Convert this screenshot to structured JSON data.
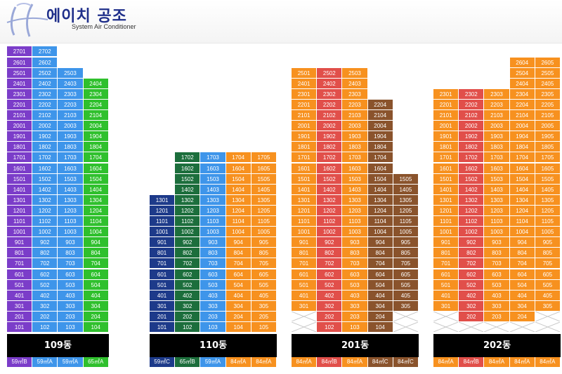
{
  "brand": {
    "name": "에이치 공조",
    "subtitle": "System Air Conditioner"
  },
  "colors": {
    "purple": "#7b3dc9",
    "blue": "#3e95ea",
    "green": "#2fc02d",
    "navy": "#1d3a8a",
    "darkgreen": "#1c6e3c",
    "orange": "#f7911f",
    "red": "#e14f4a",
    "brown": "#8a532c"
  },
  "buildings": [
    {
      "name": "109동",
      "x": 10,
      "lines": [
        {
          "key": "01",
          "color": "purple",
          "floors": [
            1,
            27
          ],
          "skip": []
        },
        {
          "key": "02",
          "color": "blue",
          "floors": [
            1,
            27
          ],
          "skip": []
        },
        {
          "key": "03",
          "color": "blue",
          "floors": [
            1,
            25
          ],
          "skip": []
        },
        {
          "key": "04",
          "color": "green",
          "floors": [
            1,
            24
          ],
          "skip": []
        }
      ],
      "units": [
        {
          "label": "59㎡B",
          "color": "purple"
        },
        {
          "label": "59㎡A",
          "color": "blue"
        },
        {
          "label": "59㎡A",
          "color": "blue"
        },
        {
          "label": "65㎡A",
          "color": "green"
        }
      ]
    },
    {
      "name": "110동",
      "x": 213,
      "lines": [
        {
          "key": "01",
          "color": "navy",
          "floors": [
            1,
            13
          ],
          "skip": []
        },
        {
          "key": "02",
          "color": "darkgreen",
          "floors": [
            1,
            17
          ],
          "skip": []
        },
        {
          "key": "03",
          "color": "blue",
          "floors": [
            1,
            17
          ],
          "skip": []
        },
        {
          "key": "04",
          "color": "orange",
          "floors": [
            1,
            17
          ],
          "skip": []
        },
        {
          "key": "05",
          "color": "orange",
          "floors": [
            1,
            17
          ],
          "skip": []
        }
      ],
      "units": [
        {
          "label": "59㎡C",
          "color": "navy"
        },
        {
          "label": "65㎡B",
          "color": "darkgreen"
        },
        {
          "label": "59㎡A",
          "color": "blue"
        },
        {
          "label": "84㎡A",
          "color": "orange"
        },
        {
          "label": "84㎡A",
          "color": "orange"
        }
      ]
    },
    {
      "name": "201동",
      "x": 415,
      "lines": [
        {
          "key": "01",
          "color": "orange",
          "floors": [
            3,
            25
          ],
          "skip": [
            1,
            2
          ]
        },
        {
          "key": "02",
          "color": "red",
          "floors": [
            1,
            25
          ],
          "skip": []
        },
        {
          "key": "03",
          "color": "orange",
          "floors": [
            1,
            25
          ],
          "skip": []
        },
        {
          "key": "04",
          "color": "brown",
          "floors": [
            1,
            22
          ],
          "skip": []
        },
        {
          "key": "05",
          "color": "brown",
          "floors": [
            3,
            15
          ],
          "skip": [
            1,
            2
          ]
        }
      ],
      "units": [
        {
          "label": "84㎡A",
          "color": "orange"
        },
        {
          "label": "84㎡B",
          "color": "red"
        },
        {
          "label": "84㎡A",
          "color": "orange"
        },
        {
          "label": "84㎡C",
          "color": "brown"
        },
        {
          "label": "84㎡C",
          "color": "brown"
        }
      ]
    },
    {
      "name": "202동",
      "x": 617,
      "lines": [
        {
          "key": "01",
          "color": "orange",
          "floors": [
            3,
            23
          ],
          "skip": [
            1,
            2
          ]
        },
        {
          "key": "02",
          "color": "red",
          "floors": [
            2,
            23
          ],
          "skip": [
            1
          ]
        },
        {
          "key": "03",
          "color": "orange",
          "floors": [
            2,
            23
          ],
          "skip": [
            1
          ]
        },
        {
          "key": "04",
          "color": "orange",
          "floors": [
            2,
            26
          ],
          "skip": [
            1
          ]
        },
        {
          "key": "05",
          "color": "orange",
          "floors": [
            3,
            26
          ],
          "skip": [
            1,
            2
          ]
        }
      ],
      "units": [
        {
          "label": "84㎡A",
          "color": "orange"
        },
        {
          "label": "84㎡B",
          "color": "red"
        },
        {
          "label": "84㎡A",
          "color": "orange"
        },
        {
          "label": "84㎡A",
          "color": "orange"
        },
        {
          "label": "84㎡A",
          "color": "orange"
        }
      ]
    }
  ]
}
